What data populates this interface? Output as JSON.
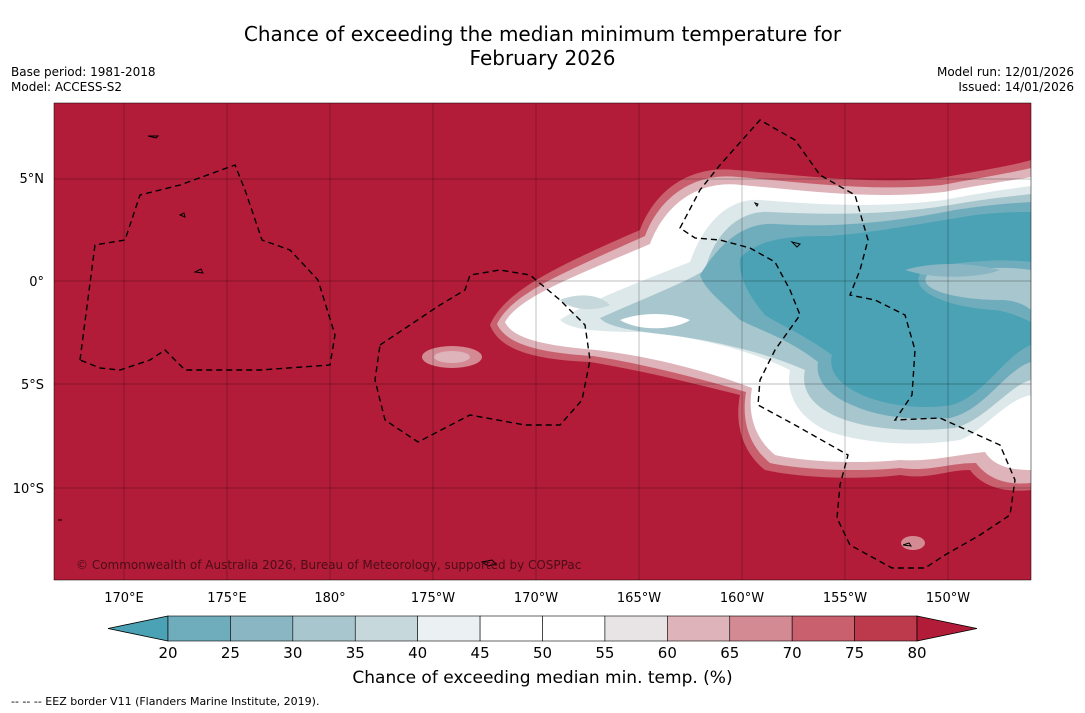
{
  "title_line1": "Chance of exceeding the median minimum temperature for",
  "title_line2": "February 2026",
  "base_period": "Base period: 1981-2018",
  "model": "Model: ACCESS-S2",
  "model_run": "Model run: 12/01/2026",
  "issued": "Issued: 14/01/2026",
  "lat_labels": [
    "5°N",
    "0°",
    "5°S",
    "10°S"
  ],
  "lon_labels": [
    "170°E",
    "175°E",
    "180°",
    "175°W",
    "170°W",
    "165°W",
    "160°W",
    "155°W",
    "150°W"
  ],
  "copyright": "© Commonwealth of Australia 2026, Bureau of Meteorology, supported by COSPPac",
  "colorbar": {
    "title": "Chance of exceeding median min. temp. (%)",
    "ticks": [
      "20",
      "25",
      "30",
      "35",
      "40",
      "45",
      "50",
      "55",
      "60",
      "65",
      "70",
      "75",
      "80"
    ],
    "colors": [
      "#4aa2b4",
      "#6fadbd",
      "#8ab6c3",
      "#a8c6cd",
      "#c7d8dc",
      "#ebf1f2",
      "#ffffff",
      "#ffffff",
      "#e8e4e5",
      "#deb3b9",
      "#d38a92",
      "#c9606e",
      "#bd3a4c",
      "#b31c38"
    ],
    "under_color": "#4aa2b4",
    "over_color": "#b31c38"
  },
  "footnote": "-- -- -- EEZ border V11 (Flanders Marine Institute, 2019).",
  "map_colors": {
    "background": "#b31c38",
    "p75": "#c9606e",
    "p65": "#deb3b9",
    "p55": "#ffffff",
    "p45": "#dce8ea",
    "p35": "#a8c6cd",
    "p25": "#6fadbd",
    "p20": "#4aa2b4"
  }
}
